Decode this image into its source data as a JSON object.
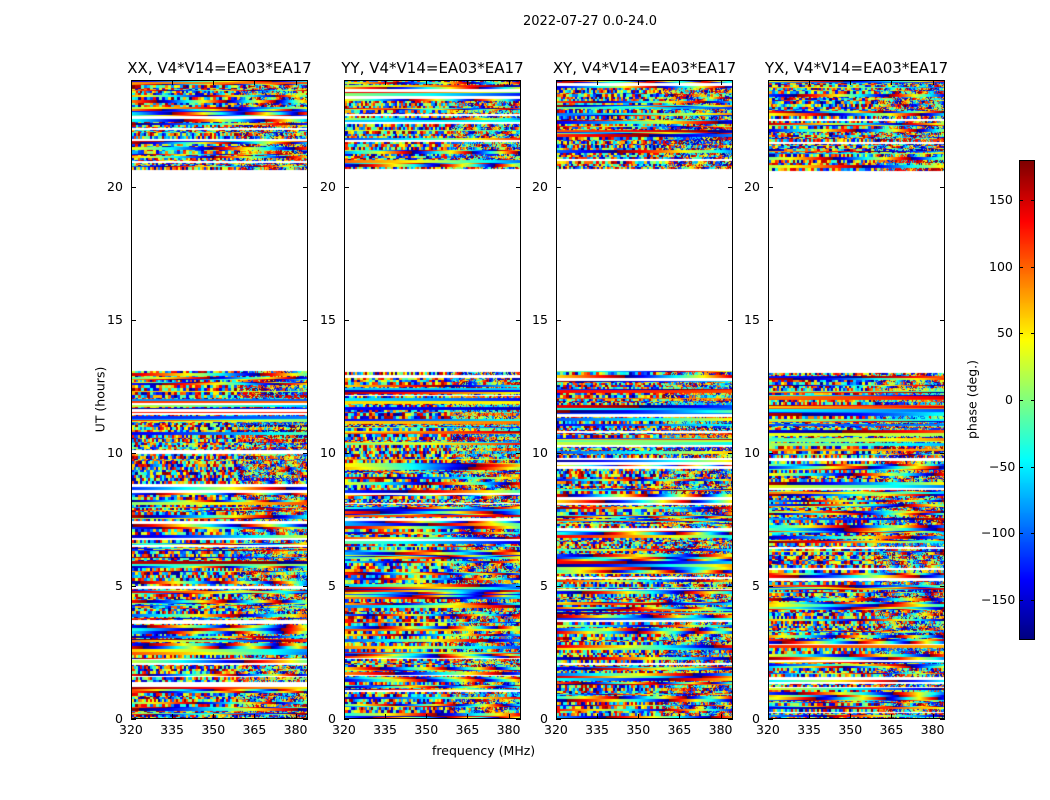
{
  "chart_data": {
    "type": "heatmap",
    "title": "2022-07-27 0.0-24.0",
    "xlabel": "frequency (MHz)",
    "ylabel": "UT (hours)",
    "xlim": [
      320,
      384.5
    ],
    "ylim": [
      0,
      24
    ],
    "xticks": [
      320,
      335,
      350,
      365,
      380
    ],
    "yticks": [
      0,
      5,
      10,
      15,
      20
    ],
    "data_coverage_hours": [
      [
        0,
        13.1
      ],
      [
        20.7,
        24
      ]
    ],
    "panels": [
      {
        "title": "XX, V4*V14=EA03*EA17",
        "seed": 11
      },
      {
        "title": "YY, V4*V14=EA03*EA17",
        "seed": 23
      },
      {
        "title": "XY, V4*V14=EA03*EA17",
        "seed": 37
      },
      {
        "title": "YX, V4*V14=EA03*EA17",
        "seed": 53
      }
    ],
    "colorbar": {
      "label": "phase (deg.)",
      "colormap": "jet",
      "range": [
        -180,
        180
      ],
      "ticks": [
        150,
        100,
        50,
        0,
        -50,
        -100,
        -150
      ]
    }
  }
}
